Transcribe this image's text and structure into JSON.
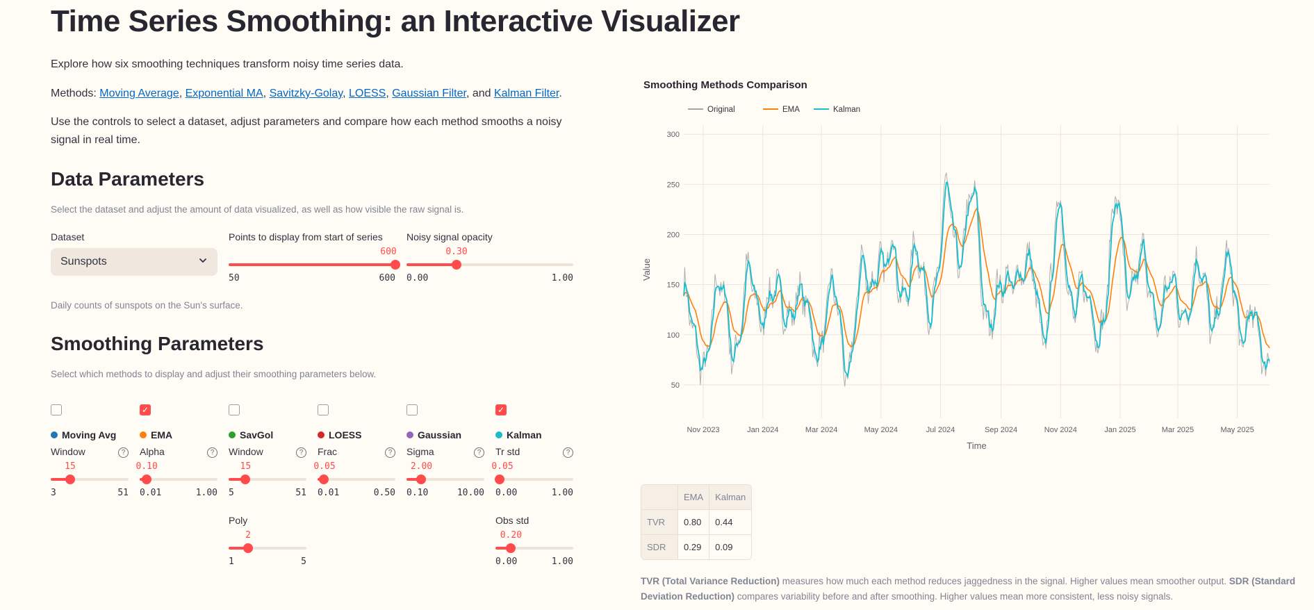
{
  "header": {
    "title": "Time Series Smoothing: an Interactive Visualizer",
    "intro": "Explore how six smoothing techniques transform noisy time series data.",
    "methods_prefix": "Methods: ",
    "methods_links": [
      "Moving Average",
      "Exponential MA",
      "Savitzky-Golay",
      "LOESS",
      "Gaussian Filter",
      "Kalman Filter"
    ],
    "methods_and": "and",
    "usage": "Use the controls to select a dataset, adjust parameters and compare how each method smooths a noisy signal in real time."
  },
  "data_params": {
    "title": "Data Parameters",
    "caption": "Select the dataset and adjust the amount of data visualized, as well as how visible the raw signal is.",
    "dataset_label": "Dataset",
    "dataset_value": "Sunspots",
    "dataset_caption": "Daily counts of sunspots on the Sun's surface.",
    "points_slider": {
      "label": "Points to display from start of series",
      "value": 600,
      "value_text": "600",
      "min": 50,
      "max": 600,
      "min_text": "50",
      "max_text": "600"
    },
    "opacity_slider": {
      "label": "Noisy signal opacity",
      "value": 0.3,
      "value_text": "0.30",
      "min": 0,
      "max": 1,
      "min_text": "0.00",
      "max_text": "1.00"
    }
  },
  "smoothing_params": {
    "title": "Smoothing Parameters",
    "caption": "Select which methods to display and adjust their smoothing parameters below.",
    "methods": [
      {
        "name": "Moving Avg",
        "color": "#1f77b4",
        "checked": false,
        "sliders": [
          {
            "label": "Window",
            "value": 15,
            "value_text": "15",
            "min": 3,
            "max": 51,
            "min_text": "3",
            "max_text": "51",
            "help": true
          }
        ]
      },
      {
        "name": "EMA",
        "color": "#ff7f0e",
        "checked": true,
        "sliders": [
          {
            "label": "Alpha",
            "value": 0.1,
            "value_text": "0.10",
            "min": 0.01,
            "max": 1,
            "min_text": "0.01",
            "max_text": "1.00",
            "help": true
          }
        ]
      },
      {
        "name": "SavGol",
        "color": "#2ca02c",
        "checked": false,
        "sliders": [
          {
            "label": "Window",
            "value": 15,
            "value_text": "15",
            "min": 5,
            "max": 51,
            "min_text": "5",
            "max_text": "51",
            "help": true
          },
          {
            "label": "Poly",
            "value": 2,
            "value_text": "2",
            "min": 1,
            "max": 5,
            "min_text": "1",
            "max_text": "5",
            "help": false
          }
        ]
      },
      {
        "name": "LOESS",
        "color": "#d62728",
        "checked": false,
        "sliders": [
          {
            "label": "Frac",
            "value": 0.05,
            "value_text": "0.05",
            "min": 0.01,
            "max": 0.5,
            "min_text": "0.01",
            "max_text": "0.50",
            "help": true
          }
        ]
      },
      {
        "name": "Gaussian",
        "color": "#9467bd",
        "checked": false,
        "sliders": [
          {
            "label": "Sigma",
            "value": 2,
            "value_text": "2.00",
            "min": 0.1,
            "max": 10,
            "min_text": "0.10",
            "max_text": "10.00",
            "help": true
          }
        ]
      },
      {
        "name": "Kalman",
        "color": "#17becf",
        "checked": true,
        "sliders": [
          {
            "label": "Tr std",
            "value": 0.05,
            "value_text": "0.05",
            "min": 0,
            "max": 1,
            "min_text": "0.00",
            "max_text": "1.00",
            "help": true
          },
          {
            "label": "Obs std",
            "value": 0.2,
            "value_text": "0.20",
            "min": 0,
            "max": 1,
            "min_text": "0.00",
            "max_text": "1.00",
            "help": false
          }
        ]
      }
    ]
  },
  "chart_data": {
    "type": "line",
    "title": "Smoothing Methods Comparison",
    "xlabel": "Time",
    "ylabel": "Value",
    "ylim": [
      25,
      305
    ],
    "yticks": [
      50,
      100,
      150,
      200,
      250,
      300
    ],
    "x_tick_labels": [
      "Nov 2023",
      "Jan 2024",
      "Mar 2024",
      "May 2024",
      "Jul 2024",
      "Sep 2024",
      "Nov 2024",
      "Jan 2025",
      "Mar 2025",
      "May 2025"
    ],
    "x_tick_days": [
      20,
      81,
      141,
      202,
      263,
      325,
      386,
      447,
      506,
      567
    ],
    "x_range_days": [
      0,
      600
    ],
    "legend": [
      "Original",
      "EMA",
      "Kalman"
    ],
    "series_colors": {
      "Original": "#a6a6a6",
      "EMA": "#ff7f0e",
      "Kalman": "#17becf"
    },
    "original_opacity": 0.3,
    "anchors": {
      "days": [
        0,
        10,
        20,
        30,
        42,
        55,
        70,
        82,
        95,
        110,
        125,
        140,
        155,
        170,
        185,
        200,
        205,
        215,
        230,
        245,
        260,
        270,
        280,
        295,
        310,
        325,
        340,
        355,
        370,
        385,
        400,
        415,
        430,
        445,
        455,
        470,
        485,
        500,
        515,
        530,
        545,
        560,
        575,
        590,
        600
      ],
      "level": [
        140,
        70,
        95,
        120,
        125,
        105,
        140,
        145,
        115,
        150,
        105,
        110,
        120,
        85,
        150,
        195,
        140,
        175,
        160,
        150,
        160,
        220,
        200,
        215,
        140,
        120,
        185,
        140,
        125,
        200,
        150,
        110,
        135,
        215,
        165,
        150,
        140,
        125,
        150,
        140,
        135,
        145,
        120,
        75,
        100
      ]
    }
  },
  "metrics": {
    "columns": [
      "",
      "EMA",
      "Kalman"
    ],
    "rows": [
      {
        "name": "TVR",
        "ema": "0.80",
        "kalman": "0.44"
      },
      {
        "name": "SDR",
        "ema": "0.29",
        "kalman": "0.09"
      }
    ]
  },
  "footnote": {
    "tvr_term": "TVR (Total Variance Reduction)",
    "tvr_text": " measures how much each method reduces jaggedness in the signal. Higher values mean smoother output. ",
    "sdr_term": "SDR (Standard Deviation Reduction)",
    "sdr_text": " compares variability before and after smoothing. Higher values mean more consistent, less noisy signals."
  }
}
